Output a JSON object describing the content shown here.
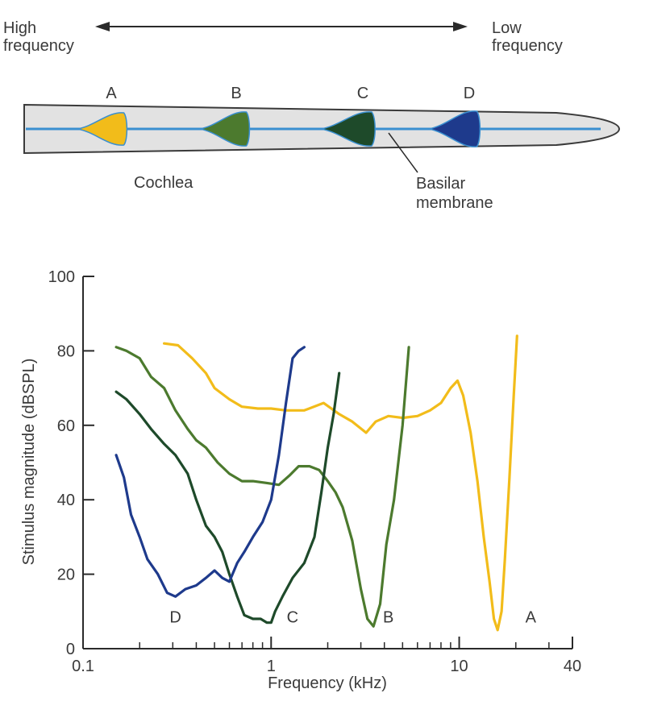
{
  "direction_labels": {
    "high_line1": "High",
    "high_line2": "frequency",
    "low_line1": "Low",
    "low_line2": "frequency"
  },
  "cochlea": {
    "label": "Cochlea",
    "membrane_label_line1": "Basilar",
    "membrane_label_line2": "membrane",
    "positions": [
      {
        "label": "A",
        "color": "#F2BC1A"
      },
      {
        "label": "B",
        "color": "#4C7A2E"
      },
      {
        "label": "C",
        "color": "#1E4A2A"
      },
      {
        "label": "D",
        "color": "#1E3A8C"
      }
    ]
  },
  "chart_data": {
    "type": "line",
    "xlabel": "Frequency (kHz)",
    "ylabel": "Stimulus magnitude (dBSPL)",
    "x_scale": "log",
    "xlim": [
      0.1,
      40
    ],
    "ylim": [
      0,
      100
    ],
    "x_ticks": [
      0.1,
      1,
      10,
      40
    ],
    "x_tick_labels": [
      "0.1",
      "1",
      "10",
      "40"
    ],
    "y_ticks": [
      0,
      20,
      40,
      60,
      80,
      100
    ],
    "y_tick_labels": [
      "0",
      "20",
      "40",
      "60",
      "80",
      "100"
    ],
    "grid": false,
    "series": [
      {
        "name": "A",
        "color": "#F2BC1A",
        "x": [
          0.27,
          0.32,
          0.38,
          0.45,
          0.5,
          0.6,
          0.7,
          0.85,
          1.0,
          1.2,
          1.5,
          1.9,
          2.3,
          2.7,
          3.2,
          3.6,
          4.2,
          5.0,
          6.0,
          7.0,
          8.0,
          9.0,
          9.8,
          10.5,
          11.5,
          12.5,
          13.5,
          14.5,
          15.3,
          16.0,
          16.8,
          17.5,
          18.5,
          19.5,
          20.3
        ],
        "y": [
          82,
          81.5,
          78,
          74,
          70,
          67,
          65,
          64.5,
          64.5,
          64,
          64,
          66,
          63,
          61,
          58,
          61,
          62.5,
          62,
          62.5,
          64,
          66,
          70,
          72,
          68,
          58,
          45,
          30,
          18,
          8,
          5,
          10,
          24,
          46,
          68,
          84
        ]
      },
      {
        "name": "B",
        "color": "#4C7A2E",
        "x": [
          0.15,
          0.17,
          0.2,
          0.23,
          0.27,
          0.31,
          0.36,
          0.4,
          0.45,
          0.52,
          0.6,
          0.7,
          0.8,
          0.95,
          1.1,
          1.25,
          1.4,
          1.6,
          1.8,
          2.0,
          2.2,
          2.4,
          2.7,
          3.0,
          3.25,
          3.5,
          3.8,
          4.1,
          4.5,
          5.0,
          5.4
        ],
        "y": [
          81,
          80,
          78,
          73,
          70,
          64,
          59,
          56,
          54,
          50,
          47,
          45,
          45,
          44.5,
          44,
          46.5,
          49,
          49,
          48,
          45,
          42,
          38,
          29,
          16,
          8,
          6,
          12,
          28,
          40,
          60,
          81
        ]
      },
      {
        "name": "C",
        "color": "#1E4A2A",
        "x": [
          0.15,
          0.17,
          0.2,
          0.23,
          0.27,
          0.31,
          0.36,
          0.4,
          0.45,
          0.5,
          0.55,
          0.6,
          0.66,
          0.72,
          0.8,
          0.88,
          0.95,
          1.0,
          1.05,
          1.15,
          1.3,
          1.5,
          1.7,
          1.85,
          2.0,
          2.15,
          2.3
        ],
        "y": [
          69,
          67,
          63,
          59,
          55,
          52,
          47,
          40,
          33,
          30,
          26,
          20,
          14,
          9,
          8,
          8,
          7,
          7,
          10,
          14,
          19,
          23,
          30,
          42,
          54,
          63,
          74
        ]
      },
      {
        "name": "D",
        "color": "#1E3A8C",
        "x": [
          0.15,
          0.165,
          0.18,
          0.2,
          0.22,
          0.25,
          0.28,
          0.31,
          0.35,
          0.4,
          0.45,
          0.5,
          0.55,
          0.6,
          0.66,
          0.72,
          0.8,
          0.9,
          1.0,
          1.1,
          1.2,
          1.3,
          1.4,
          1.5
        ],
        "y": [
          52,
          46,
          36,
          30,
          24,
          20,
          15,
          14,
          16,
          17,
          19,
          21,
          19,
          18,
          23,
          26,
          30,
          34,
          40,
          52,
          66,
          78,
          80,
          81
        ]
      }
    ],
    "curve_labels": [
      {
        "name": "D",
        "x": 0.31,
        "y": 7
      },
      {
        "name": "C",
        "x": 1.3,
        "y": 7
      },
      {
        "name": "B",
        "x": 4.2,
        "y": 7
      },
      {
        "name": "A",
        "x": 24,
        "y": 7
      }
    ]
  }
}
